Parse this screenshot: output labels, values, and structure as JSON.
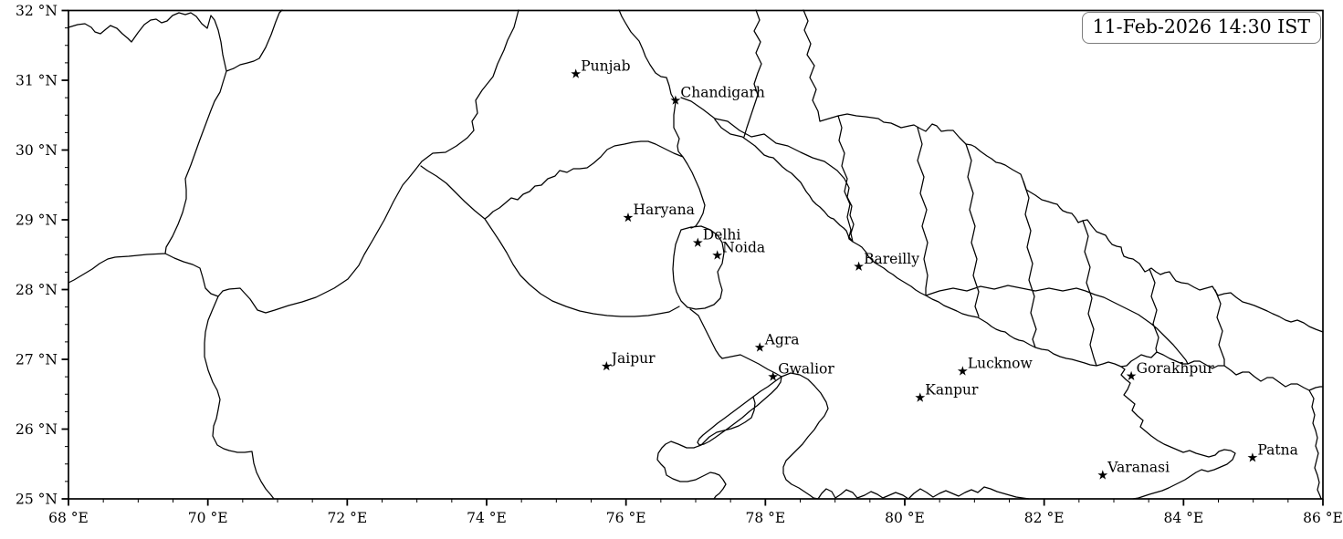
{
  "figure": {
    "timestamp_box": {
      "text": "11-Feb-2026 14:30 IST"
    },
    "map": {
      "extent": {
        "lon_min": 68,
        "lon_max": 86,
        "lat_min": 25,
        "lat_max": 32
      },
      "x_axis": {
        "major_tick_values": [
          68,
          70,
          72,
          74,
          76,
          78,
          80,
          82,
          84,
          86
        ],
        "major_tick_labels": [
          "68 °E",
          "70 °E",
          "72 °E",
          "74 °E",
          "76 °E",
          "78 °E",
          "80 °E",
          "82 °E",
          "84 °E",
          "86 °E"
        ],
        "minor_tick_step": 0.5
      },
      "y_axis": {
        "major_tick_values": [
          25,
          26,
          27,
          28,
          29,
          30,
          31,
          32
        ],
        "major_tick_labels": [
          "25 °N",
          "26 °N",
          "27 °N",
          "28 °N",
          "29 °N",
          "30 °N",
          "31 °N",
          "32 °N"
        ],
        "minor_tick_step": 0.25
      },
      "cities": [
        {
          "name": "Punjab",
          "lon": 75.28,
          "lat": 31.09
        },
        {
          "name": "Chandigarh",
          "lon": 76.71,
          "lat": 30.71
        },
        {
          "name": "Haryana",
          "lon": 76.03,
          "lat": 29.03
        },
        {
          "name": "Delhi",
          "lon": 77.03,
          "lat": 28.67
        },
        {
          "name": "Noida",
          "lon": 77.31,
          "lat": 28.49
        },
        {
          "name": "Bareilly",
          "lon": 79.34,
          "lat": 28.33
        },
        {
          "name": "Agra",
          "lon": 77.92,
          "lat": 27.17
        },
        {
          "name": "Jaipur",
          "lon": 75.72,
          "lat": 26.9
        },
        {
          "name": "Gwalior",
          "lon": 78.11,
          "lat": 26.75
        },
        {
          "name": "Lucknow",
          "lon": 80.83,
          "lat": 26.83
        },
        {
          "name": "Kanpur",
          "lon": 80.22,
          "lat": 26.45
        },
        {
          "name": "Gorakhpur",
          "lon": 83.25,
          "lat": 26.76
        },
        {
          "name": "Varanasi",
          "lon": 82.84,
          "lat": 25.34
        },
        {
          "name": "Patna",
          "lon": 84.99,
          "lat": 25.59
        }
      ],
      "marker": {
        "symbol": "star",
        "color": "#000000"
      },
      "line_color": "#000000",
      "background_color": "#ffffff"
    }
  }
}
